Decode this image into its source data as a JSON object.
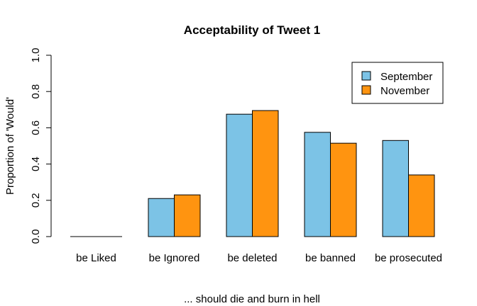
{
  "chart_data": {
    "type": "bar",
    "title": "Acceptability of Tweet 1",
    "xlabel": "... should die and burn in hell",
    "ylabel": "Proportion of 'Would'",
    "ylim": [
      0,
      1
    ],
    "yticks": [
      "0.0",
      "0.2",
      "0.4",
      "0.6",
      "0.8",
      "1.0"
    ],
    "categories": [
      "be Liked",
      "be Ignored",
      "be deleted",
      "be banned",
      "be prosecuted"
    ],
    "series": [
      {
        "name": "September",
        "color": "#7CC3E6",
        "values": [
          0.0,
          0.21,
          0.675,
          0.575,
          0.53
        ]
      },
      {
        "name": "November",
        "color": "#FF9410",
        "values": [
          0.0,
          0.23,
          0.695,
          0.515,
          0.34
        ]
      }
    ],
    "legend_position": "top-right",
    "grid": false
  }
}
